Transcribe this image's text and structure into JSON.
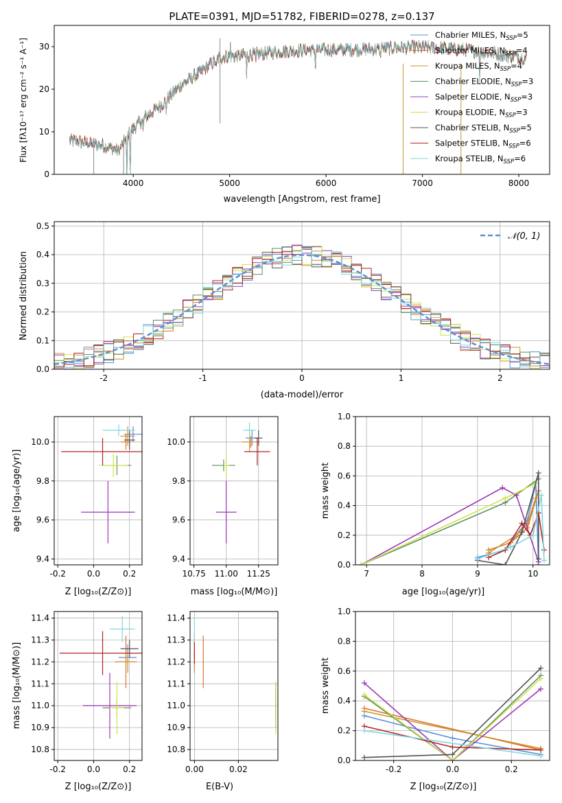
{
  "figure_title": "PLATE=0391, MJD=51782, FIBERID=0278, z=0.137",
  "model_colors": [
    "#5b8ed6",
    "#e0702a",
    "#c8942c",
    "#5a8f5a",
    "#9b35b5",
    "#cfe04a",
    "#505050",
    "#b22222",
    "#7fd6de"
  ],
  "model_names": [
    "Chabrier MILES, N_SSP=5",
    "Salpeter MILES, N_SSP=4",
    "Kroupa MILES, N_SSP=4",
    "Chabrier ELODIE, N_SSP=3",
    "Salpeter ELODIE, N_SSP=3",
    "Kroupa ELODIE, N_SSP=3",
    "Chabrier STELIB, N_SSP=5",
    "Salpeter STELIB, N_SSP=6",
    "Kroupa STELIB, N_SSP=6"
  ],
  "legend_labels": [
    {
      "name": "Chabrier MILES, N",
      "sub": "SSP",
      "tail": "=5"
    },
    {
      "name": "Salpeter MILES, N",
      "sub": "SSP",
      "tail": "=4"
    },
    {
      "name": "Kroupa MILES, N",
      "sub": "SSP",
      "tail": "=4"
    },
    {
      "name": "Chabrier ELODIE, N",
      "sub": "SSP",
      "tail": "=3"
    },
    {
      "name": "Salpeter ELODIE, N",
      "sub": "SSP",
      "tail": "=3"
    },
    {
      "name": "Kroupa ELODIE, N",
      "sub": "SSP",
      "tail": "=3"
    },
    {
      "name": "Chabrier STELIB, N",
      "sub": "SSP",
      "tail": "=5"
    },
    {
      "name": "Salpeter STELIB, N",
      "sub": "SSP",
      "tail": "=6"
    },
    {
      "name": "Kroupa STELIB, N",
      "sub": "SSP",
      "tail": "=6"
    }
  ],
  "axis_labels": {
    "spec_x": "wavelength [Angstrom, rest frame]",
    "spec_y": "Flux [fλ10⁻¹⁷ erg cm⁻² s⁻¹ A⁻¹]",
    "hist_x": "(data-model)/error",
    "hist_y": "Normed distribution",
    "hist_legend": "𝒩(0, 1)",
    "age_y": "age  [log₁₀(age/yr)]",
    "z_x": "Z [log₁₀(Z/Z⊙)]",
    "mass_x": "mass [log₁₀(M/M⊙)]",
    "mass_y": "mass [log₁₀(M/M⊙)]",
    "mw_y": "mass weight",
    "age_x": "age  [log₁₀(age/yr)]",
    "ebv_x": "E(B-V)"
  },
  "chart_data": [
    {
      "id": "spectrum",
      "type": "line",
      "title": "PLATE=0391, MJD=51782, FIBERID=0278, z=0.137",
      "xlabel": "wavelength [Angstrom, rest frame]",
      "ylabel": "Flux [fλ10⁻¹⁷ erg cm⁻² s⁻¹ A⁻¹]",
      "xlim": [
        3180,
        8320
      ],
      "ylim": [
        0,
        35
      ],
      "xticks": [
        4000,
        5000,
        6000,
        7000,
        8000
      ],
      "yticks": [
        0,
        10,
        20,
        30
      ],
      "continuum_knots": [
        [
          3340,
          8
        ],
        [
          3500,
          7.5
        ],
        [
          3700,
          6.7
        ],
        [
          3850,
          5.5
        ],
        [
          3950,
          9.5
        ],
        [
          4100,
          13
        ],
        [
          4300,
          16.5
        ],
        [
          4500,
          21
        ],
        [
          4700,
          24
        ],
        [
          4900,
          27.5
        ],
        [
          5200,
          28
        ],
        [
          5500,
          28.8
        ],
        [
          5800,
          29.2
        ],
        [
          6100,
          29.3
        ],
        [
          6500,
          29.4
        ],
        [
          6800,
          29.8
        ],
        [
          7200,
          29.7
        ],
        [
          7600,
          28.9
        ],
        [
          8000,
          27.6
        ],
        [
          8080,
          27.2
        ]
      ],
      "absorption_features": [
        [
          3933,
          12,
          4
        ],
        [
          3968,
          12,
          4
        ],
        [
          4102,
          3,
          5
        ],
        [
          4340,
          3,
          5
        ],
        [
          4861,
          3,
          4
        ],
        [
          5175,
          6,
          3
        ],
        [
          5270,
          3,
          3
        ],
        [
          5890,
          4,
          3
        ],
        [
          6563,
          2,
          5
        ],
        [
          7594,
          8,
          3
        ]
      ],
      "emission_features": [
        [
          4959,
          1.5,
          3
        ],
        [
          5007,
          3,
          3
        ],
        [
          6584,
          2,
          3
        ],
        [
          6717,
          1.5,
          3
        ]
      ],
      "spike_lines": [
        {
          "x": 4900,
          "y0": 12,
          "y1": 32
        },
        {
          "x": 3590,
          "y0": 0,
          "y1": 7
        },
        {
          "x": 3900,
          "y0": 0,
          "y1": 8
        },
        {
          "x": 6800,
          "y0": 0,
          "y1": 26
        },
        {
          "x": 7400,
          "y0": 0,
          "y1": 26
        }
      ],
      "legend": [
        "Chabrier MILES, N_SSP=5",
        "Salpeter MILES, N_SSP=4",
        "Kroupa MILES, N_SSP=4",
        "Chabrier ELODIE, N_SSP=3",
        "Salpeter ELODIE, N_SSP=3",
        "Kroupa ELODIE, N_SSP=3",
        "Chabrier STELIB, N_SSP=5",
        "Salpeter STELIB, N_SSP=6",
        "Kroupa STELIB, N_SSP=6"
      ],
      "legend_position": "right"
    },
    {
      "id": "residuals",
      "type": "area",
      "xlabel": "(data-model)/error",
      "ylabel": "Normed distribution",
      "xlim": [
        -2.5,
        2.5
      ],
      "ylim": [
        0,
        0.515
      ],
      "xticks": [
        -2,
        -1,
        0,
        1,
        2
      ],
      "yticks": [
        0.0,
        0.1,
        0.2,
        0.3,
        0.4,
        0.5
      ],
      "grid": true,
      "bin_width": 0.1,
      "reference_curve": "N(0,1) dashed",
      "legend_position": "top-right"
    },
    {
      "id": "age_vs_Z",
      "type": "scatter",
      "xlabel": "Z [log₁₀(Z/Z⊙)]",
      "ylabel": "age  [log₁₀(age/yr)]",
      "xlim": [
        -0.22,
        0.27
      ],
      "ylim": [
        9.37,
        10.13
      ],
      "xticks": [
        -0.2,
        0.0,
        0.2
      ],
      "yticks": [
        9.4,
        9.6,
        9.8,
        10.0
      ],
      "grid": true,
      "points": [
        {
          "x": 0.22,
          "y": 10.04,
          "xerr": 0.05,
          "yerr": 0.04
        },
        {
          "x": 0.18,
          "y": 10.0,
          "xerr": 0.03,
          "yerr": 0.04
        },
        {
          "x": 0.19,
          "y": 10.03,
          "xerr": 0.04,
          "yerr": 0.05
        },
        {
          "x": 0.13,
          "y": 9.88,
          "xerr": 0.08,
          "yerr": 0.05
        },
        {
          "x": 0.08,
          "y": 9.64,
          "xerr": 0.15,
          "yerr": 0.16
        },
        {
          "x": 0.11,
          "y": 9.88,
          "xerr": 0.08,
          "yerr": 0.06
        },
        {
          "x": 0.2,
          "y": 10.01,
          "xerr": 0.03,
          "yerr": 0.05
        },
        {
          "x": 0.05,
          "y": 9.95,
          "xerr": 0.23,
          "yerr": 0.07
        },
        {
          "x": 0.14,
          "y": 10.06,
          "xerr": 0.09,
          "yerr": 0.03
        }
      ]
    },
    {
      "id": "age_vs_mass",
      "type": "scatter",
      "xlabel": "mass [log₁₀(M/M⊙)]",
      "xlim": [
        10.72,
        11.4
      ],
      "ylim": [
        9.37,
        10.13
      ],
      "xticks": [
        10.75,
        11.0,
        11.25
      ],
      "yticks": [
        9.4,
        9.6,
        9.8,
        10.0
      ],
      "grid": true,
      "points": [
        {
          "x": 11.2,
          "y": 10.02,
          "xerr": 0.05,
          "yerr": 0.04
        },
        {
          "x": 11.19,
          "y": 10.0,
          "xerr": 0.07,
          "yerr": 0.03
        },
        {
          "x": 11.18,
          "y": 10.0,
          "xerr": 0.04,
          "yerr": 0.05
        },
        {
          "x": 10.98,
          "y": 9.88,
          "xerr": 0.09,
          "yerr": 0.03
        },
        {
          "x": 11.0,
          "y": 9.64,
          "xerr": 0.08,
          "yerr": 0.16
        },
        {
          "x": 11.0,
          "y": 9.88,
          "xerr": 0.02,
          "yerr": 0.06
        },
        {
          "x": 11.25,
          "y": 10.02,
          "xerr": 0.03,
          "yerr": 0.04
        },
        {
          "x": 11.24,
          "y": 9.95,
          "xerr": 0.1,
          "yerr": 0.07
        },
        {
          "x": 11.18,
          "y": 10.06,
          "xerr": 0.05,
          "yerr": 0.04
        }
      ]
    },
    {
      "id": "mass_weight_vs_age",
      "type": "line",
      "xlabel": "age  [log₁₀(age/yr)]",
      "ylabel": "mass weight",
      "xlim": [
        6.8,
        10.3
      ],
      "ylim": [
        0,
        1
      ],
      "xticks": [
        7,
        8,
        9,
        10
      ],
      "yticks": [
        0.0,
        0.2,
        0.4,
        0.6,
        0.8,
        1.0
      ],
      "grid": true,
      "series": [
        {
          "x": [
            9.0,
            9.5,
            9.9,
            10.05,
            10.1
          ],
          "y": [
            0.05,
            0.1,
            0.3,
            0.55,
            0.0
          ]
        },
        {
          "x": [
            9.2,
            9.6,
            9.9,
            10.1
          ],
          "y": [
            0.1,
            0.15,
            0.25,
            0.5
          ]
        },
        {
          "x": [
            9.2,
            9.7,
            9.9,
            10.05
          ],
          "y": [
            0.08,
            0.2,
            0.28,
            0.45
          ]
        },
        {
          "x": [
            6.9,
            9.5,
            10.1
          ],
          "y": [
            0.0,
            0.42,
            0.58
          ]
        },
        {
          "x": [
            6.9,
            9.45,
            9.7,
            10.1
          ],
          "y": [
            0.0,
            0.52,
            0.47,
            0.02
          ]
        },
        {
          "x": [
            6.9,
            9.5,
            10.05
          ],
          "y": [
            0.0,
            0.45,
            0.55
          ]
        },
        {
          "x": [
            9.0,
            9.5,
            9.8,
            10.1,
            10.1
          ],
          "y": [
            0.03,
            0.0,
            0.22,
            0.62,
            0.04
          ]
        },
        {
          "x": [
            9.2,
            9.5,
            9.8,
            9.95,
            10.1,
            10.2
          ],
          "y": [
            0.05,
            0.1,
            0.28,
            0.2,
            0.35,
            0.1
          ]
        },
        {
          "x": [
            9.0,
            9.6,
            10.0,
            10.15,
            10.2
          ],
          "y": [
            0.04,
            0.12,
            0.2,
            0.47,
            0.03
          ]
        }
      ]
    },
    {
      "id": "mass_vs_Z",
      "type": "scatter",
      "xlabel": "Z [log₁₀(Z/Z⊙)]",
      "ylabel": "mass [log₁₀(M/M⊙)]",
      "xlim": [
        -0.22,
        0.27
      ],
      "ylim": [
        10.75,
        11.43
      ],
      "xticks": [
        -0.2,
        0.0,
        0.2
      ],
      "yticks": [
        10.8,
        10.9,
        11.0,
        11.1,
        11.2,
        11.3,
        11.4
      ],
      "grid": true,
      "points": [
        {
          "x": 0.19,
          "y": 11.22,
          "xerr": 0.05,
          "yerr": 0.06
        },
        {
          "x": 0.18,
          "y": 11.2,
          "xerr": 0.06,
          "yerr": 0.12
        },
        {
          "x": 0.19,
          "y": 11.2,
          "xerr": 0.04,
          "yerr": 0.05
        },
        {
          "x": 0.13,
          "y": 10.99,
          "xerr": 0.08,
          "yerr": 0.04
        },
        {
          "x": 0.09,
          "y": 11.0,
          "xerr": 0.15,
          "yerr": 0.15
        },
        {
          "x": 0.13,
          "y": 10.99,
          "xerr": 0.04,
          "yerr": 0.12
        },
        {
          "x": 0.2,
          "y": 11.26,
          "xerr": 0.05,
          "yerr": 0.04
        },
        {
          "x": 0.05,
          "y": 11.24,
          "xerr": 0.24,
          "yerr": 0.1
        },
        {
          "x": 0.16,
          "y": 11.35,
          "xerr": 0.07,
          "yerr": 0.06
        }
      ]
    },
    {
      "id": "mass_vs_ebv",
      "type": "scatter",
      "xlabel": "E(B-V)",
      "xlim": [
        -0.002,
        0.038
      ],
      "ylim": [
        10.75,
        11.43
      ],
      "xticks": [
        0.0,
        0.02
      ],
      "yticks": [
        10.8,
        10.9,
        11.0,
        11.1,
        11.2,
        11.3,
        11.4
      ],
      "grid": true,
      "points": [
        {
          "x": 0.0,
          "y": 11.2,
          "yerr": 0.04
        },
        {
          "x": 0.004,
          "y": 11.2,
          "yerr": 0.12
        },
        {
          "x": 0.0,
          "y": 11.2,
          "yerr": 0.05
        },
        {
          "x": 0.037,
          "y": 10.99,
          "yerr": 0.04
        },
        {
          "x": 0.037,
          "y": 11.0,
          "yerr": 0.1
        },
        {
          "x": 0.037,
          "y": 10.99,
          "yerr": 0.12
        },
        {
          "x": 0.0,
          "y": 11.26,
          "yerr": 0.04
        },
        {
          "x": 0.0,
          "y": 11.26,
          "yerr": 0.07
        },
        {
          "x": 0.0,
          "y": 11.35,
          "yerr": 0.06
        }
      ]
    },
    {
      "id": "mass_weight_vs_Z",
      "type": "line",
      "xlabel": "Z [log₁₀(Z/Z⊙)]",
      "ylabel": "mass weight",
      "xlim": [
        -0.33,
        0.33
      ],
      "ylim": [
        0,
        1
      ],
      "xticks": [
        -0.2,
        0.0,
        0.2
      ],
      "yticks": [
        0.0,
        0.2,
        0.4,
        0.6,
        0.8,
        1.0
      ],
      "grid": true,
      "series": [
        {
          "x": [
            -0.3,
            0.0,
            0.3
          ],
          "y": [
            0.3,
            0.15,
            0.04
          ]
        },
        {
          "x": [
            -0.3,
            0.3
          ],
          "y": [
            0.35,
            0.07
          ]
        },
        {
          "x": [
            -0.3,
            0.3
          ],
          "y": [
            0.33,
            0.08
          ]
        },
        {
          "x": [
            -0.3,
            0.0,
            0.3
          ],
          "y": [
            0.43,
            0.0,
            0.57
          ]
        },
        {
          "x": [
            -0.3,
            0.0,
            0.3
          ],
          "y": [
            0.52,
            0.0,
            0.48
          ]
        },
        {
          "x": [
            -0.3,
            0.0,
            0.3
          ],
          "y": [
            0.44,
            0.0,
            0.55
          ]
        },
        {
          "x": [
            -0.3,
            0.0,
            0.3
          ],
          "y": [
            0.02,
            0.04,
            0.62
          ]
        },
        {
          "x": [
            -0.3,
            0.0,
            0.3
          ],
          "y": [
            0.23,
            0.09,
            0.07
          ]
        },
        {
          "x": [
            -0.3,
            0.3
          ],
          "y": [
            0.2,
            0.03
          ]
        }
      ]
    }
  ]
}
